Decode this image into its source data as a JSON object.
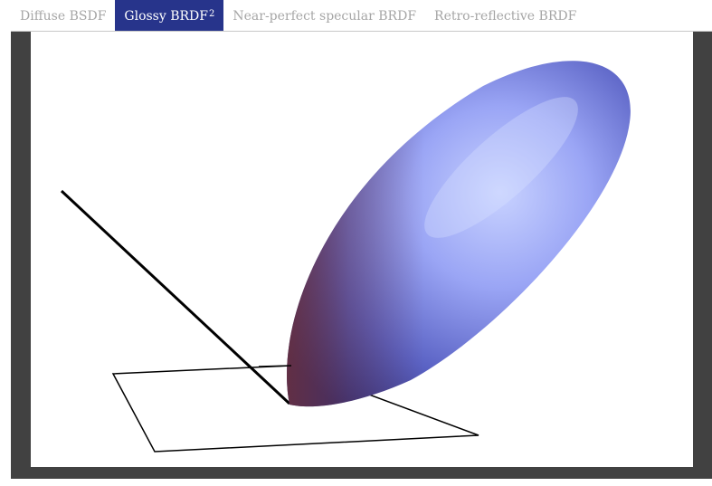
{
  "tabs": [
    {
      "label": "Diffuse BSDF",
      "active": false
    },
    {
      "label": "Glossy BRDF",
      "superscript": "2",
      "active": true
    },
    {
      "label": "Near-perfect specular BRDF",
      "active": false
    },
    {
      "label": "Retro-reflective BRDF",
      "active": false
    }
  ],
  "scene": {
    "lobe_color": "#8f99ee",
    "lobe_highlight": "#c8d2ff",
    "lobe_shadow": "#2d2f7e",
    "lobe_rim": "#6b2f3a",
    "line_color": "#000000"
  }
}
